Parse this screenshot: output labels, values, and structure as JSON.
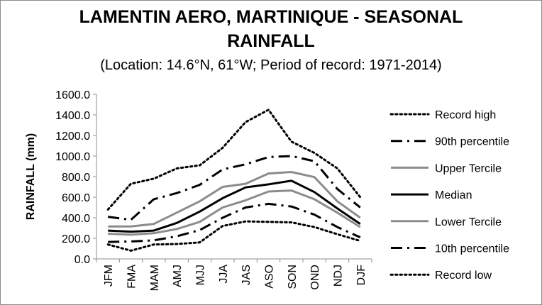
{
  "chart_data": {
    "type": "line",
    "title_line1": "LAMENTIN AERO, MARTINIQUE - SEASONAL",
    "title_line2": "RAINFALL",
    "subtitle": "(Location: 14.6°N, 61°W; Period of record: 1971-2014)",
    "xlabel": "",
    "ylabel": "RAINFALL (mm)",
    "ylim": [
      0,
      1600
    ],
    "yticks": [
      "0.0",
      "200.0",
      "400.0",
      "600.0",
      "800.0",
      "1000.0",
      "1200.0",
      "1400.0",
      "1600.0"
    ],
    "grid": false,
    "legend_position": "right",
    "categories": [
      "JFM",
      "FMA",
      "MAM",
      "AMJ",
      "MJJ",
      "JJA",
      "JAS",
      "ASO",
      "SON",
      "OND",
      "NDJ",
      "DJF"
    ],
    "series": [
      {
        "name": "Record high",
        "style": "dotted",
        "color": "#000000",
        "width": 3,
        "values": [
          480,
          730,
          780,
          880,
          910,
          1080,
          1330,
          1450,
          1140,
          1030,
          880,
          600
        ]
      },
      {
        "name": "90th percentile",
        "style": "dashdot",
        "color": "#000000",
        "width": 3,
        "values": [
          410,
          380,
          580,
          640,
          720,
          870,
          920,
          990,
          1000,
          950,
          680,
          500
        ]
      },
      {
        "name": "Upper Tercile",
        "style": "solid",
        "color": "#8c8c8c",
        "width": 3,
        "values": [
          315,
          315,
          340,
          450,
          560,
          700,
          730,
          830,
          845,
          795,
          560,
          400
        ]
      },
      {
        "name": "Median",
        "style": "solid",
        "color": "#000000",
        "width": 3,
        "values": [
          275,
          265,
          275,
          350,
          460,
          590,
          695,
          725,
          760,
          650,
          490,
          340
        ]
      },
      {
        "name": "Lower Tercile",
        "style": "solid",
        "color": "#8c8c8c",
        "width": 3,
        "values": [
          245,
          235,
          250,
          290,
          360,
          500,
          570,
          655,
          665,
          580,
          450,
          310
        ]
      },
      {
        "name": "10th percentile",
        "style": "dashdot",
        "color": "#000000",
        "width": 3,
        "values": [
          165,
          170,
          180,
          220,
          280,
          400,
          500,
          535,
          510,
          430,
          310,
          210
        ]
      },
      {
        "name": "Record low",
        "style": "dotted",
        "color": "#000000",
        "width": 3,
        "values": [
          140,
          80,
          140,
          145,
          160,
          320,
          365,
          360,
          355,
          310,
          240,
          175
        ]
      }
    ]
  }
}
